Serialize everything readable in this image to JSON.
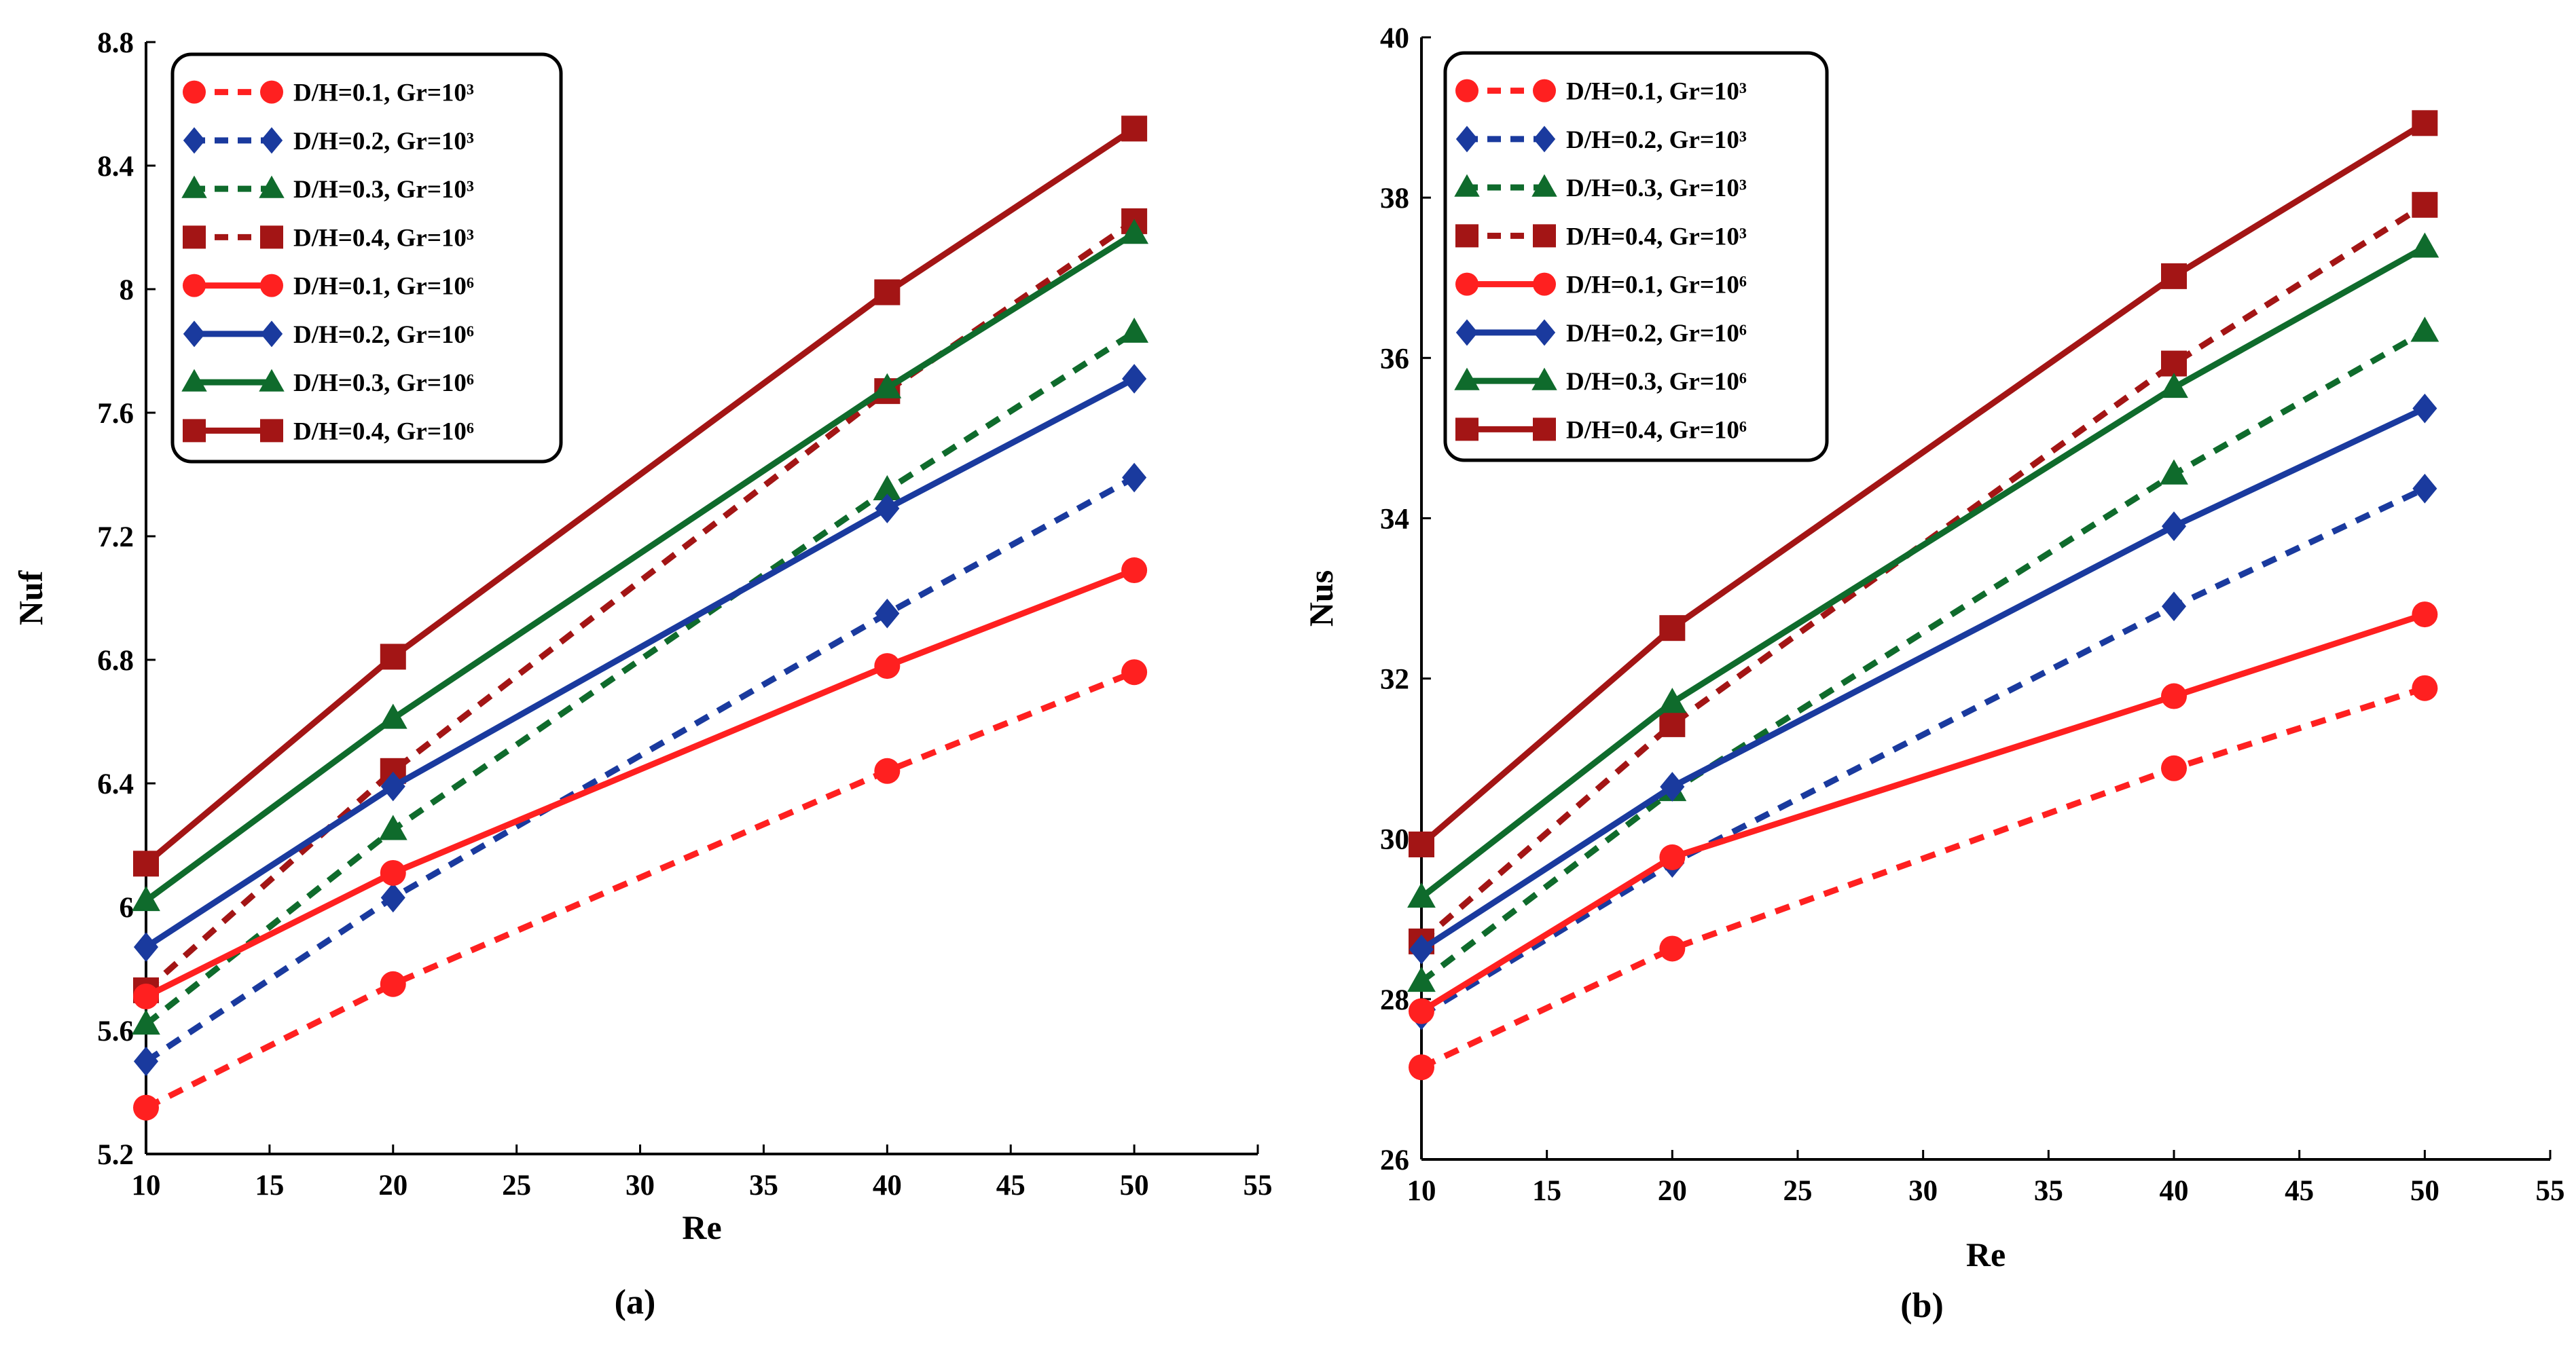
{
  "colors": {
    "red": "#ff2020",
    "blue": "#1a3a9e",
    "green": "#0f6b2c",
    "darkred": "#a31515",
    "axis": "#000000"
  },
  "chart_data": [
    {
      "type": "line",
      "panel_label": "(a)",
      "xlabel": "Re",
      "ylabel": "Nuf",
      "xlim": [
        10,
        55
      ],
      "ylim": [
        5.2,
        8.8
      ],
      "xticks": [
        "10",
        "15",
        "20",
        "25",
        "30",
        "35",
        "40",
        "45",
        "50",
        "55"
      ],
      "yticks": [
        "5.2",
        "5.6",
        "6",
        "6.4",
        "6.8",
        "7.2",
        "7.6",
        "8",
        "8.4",
        "8.8"
      ],
      "legend_position": "top-left",
      "x": [
        10,
        20,
        40,
        50
      ],
      "series": [
        {
          "name": "D/H=0.1, Gr=10³",
          "color": "red",
          "marker": "circle",
          "dash": "dashed",
          "values": [
            5.35,
            5.75,
            6.44,
            6.76
          ]
        },
        {
          "name": "D/H=0.2, Gr=10³",
          "color": "blue",
          "marker": "diamond",
          "dash": "dashed",
          "values": [
            5.5,
            6.03,
            6.95,
            7.39
          ]
        },
        {
          "name": "D/H=0.3, Gr=10³",
          "color": "green",
          "marker": "triangle",
          "dash": "dashed",
          "values": [
            5.62,
            6.25,
            7.35,
            7.86
          ]
        },
        {
          "name": "D/H=0.4, Gr=10³",
          "color": "darkred",
          "marker": "square",
          "dash": "dashed",
          "values": [
            5.73,
            6.44,
            7.67,
            8.22
          ]
        },
        {
          "name": "D/H=0.1, Gr=10⁶",
          "color": "red",
          "marker": "circle",
          "dash": "solid",
          "values": [
            5.71,
            6.11,
            6.78,
            7.09
          ]
        },
        {
          "name": "D/H=0.2, Gr=10⁶",
          "color": "blue",
          "marker": "diamond",
          "dash": "solid",
          "values": [
            5.87,
            6.39,
            7.29,
            7.71
          ]
        },
        {
          "name": "D/H=0.3, Gr=10⁶",
          "color": "green",
          "marker": "triangle",
          "dash": "solid",
          "values": [
            6.02,
            6.61,
            7.68,
            8.18
          ]
        },
        {
          "name": "D/H=0.4, Gr=10⁶",
          "color": "darkred",
          "marker": "square",
          "dash": "solid",
          "values": [
            6.14,
            6.81,
            7.99,
            8.52
          ]
        }
      ]
    },
    {
      "type": "line",
      "panel_label": "(b)",
      "xlabel": "Re",
      "ylabel": "Nus",
      "xlim": [
        10,
        55
      ],
      "ylim": [
        26,
        40
      ],
      "xticks": [
        "10",
        "15",
        "20",
        "25",
        "30",
        "35",
        "40",
        "45",
        "50",
        "55"
      ],
      "yticks": [
        "26",
        "28",
        "30",
        "32",
        "34",
        "36",
        "38",
        "40"
      ],
      "legend_position": "top-left",
      "x": [
        10,
        20,
        40,
        50
      ],
      "series": [
        {
          "name": "D/H=0.1, Gr=10³",
          "color": "red",
          "marker": "circle",
          "dash": "dashed",
          "values": [
            27.15,
            28.63,
            30.88,
            31.88
          ]
        },
        {
          "name": "D/H=0.2, Gr=10³",
          "color": "blue",
          "marker": "diamond",
          "dash": "dashed",
          "values": [
            27.8,
            29.7,
            32.9,
            34.37
          ]
        },
        {
          "name": "D/H=0.3, Gr=10³",
          "color": "green",
          "marker": "triangle",
          "dash": "dashed",
          "values": [
            28.22,
            30.6,
            34.55,
            36.33
          ]
        },
        {
          "name": "D/H=0.4, Gr=10³",
          "color": "darkred",
          "marker": "square",
          "dash": "dashed",
          "values": [
            28.72,
            31.43,
            35.93,
            37.91
          ]
        },
        {
          "name": "D/H=0.1, Gr=10⁶",
          "color": "red",
          "marker": "circle",
          "dash": "solid",
          "values": [
            27.85,
            29.77,
            31.78,
            32.8
          ]
        },
        {
          "name": "D/H=0.2, Gr=10⁶",
          "color": "blue",
          "marker": "diamond",
          "dash": "solid",
          "values": [
            28.62,
            30.65,
            33.9,
            35.37
          ]
        },
        {
          "name": "D/H=0.3, Gr=10⁶",
          "color": "green",
          "marker": "triangle",
          "dash": "solid",
          "values": [
            29.27,
            31.7,
            35.63,
            37.38
          ]
        },
        {
          "name": "D/H=0.4, Gr=10⁶",
          "color": "darkred",
          "marker": "square",
          "dash": "solid",
          "values": [
            29.93,
            32.63,
            37.02,
            38.93
          ]
        }
      ]
    }
  ]
}
